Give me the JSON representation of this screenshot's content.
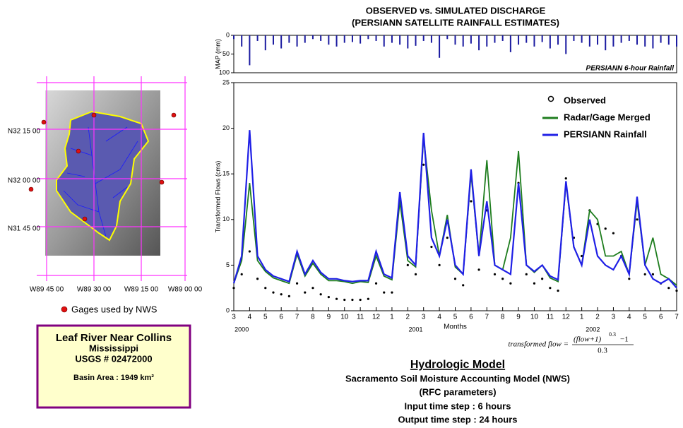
{
  "chart_data": [
    {
      "type": "bar",
      "title": "OBSERVED vs. SIMULATED DISCHARGE",
      "subtitle": "(PERSIANN SATELLITE RAINFALL ESTIMATES)",
      "ylabel": "MAP (mm)",
      "annotation": "PERSIANN 6-hour Rainfall",
      "color": "#1a1aa0",
      "x": [
        0,
        0.5,
        1,
        1.5,
        2,
        2.5,
        3,
        3.5,
        4,
        4.5,
        5,
        5.5,
        6,
        6.5,
        7,
        7.5,
        8,
        8.5,
        9,
        9.5,
        10,
        10.5,
        11,
        11.5,
        12,
        12.5,
        13,
        13.5,
        14,
        14.5,
        15,
        15.5,
        16,
        16.5,
        17,
        17.5,
        18,
        18.5,
        19,
        19.5,
        20,
        20.5,
        21,
        21.5,
        22,
        22.5,
        23,
        23.5,
        24,
        24.5,
        25,
        25.5,
        26,
        26.5,
        27,
        27.5,
        28
      ],
      "values": [
        10,
        30,
        80,
        15,
        40,
        25,
        35,
        20,
        30,
        20,
        10,
        15,
        25,
        30,
        20,
        18,
        22,
        10,
        15,
        30,
        20,
        25,
        35,
        28,
        15,
        20,
        60,
        10,
        25,
        30,
        22,
        40,
        30,
        20,
        15,
        45,
        25,
        20,
        30,
        18,
        35,
        25,
        50,
        15,
        20,
        30,
        25,
        40,
        30,
        20,
        15,
        25,
        30,
        35,
        20,
        25,
        30
      ],
      "xlim": [
        0,
        28
      ],
      "ylim": [
        100,
        0
      ],
      "yticks": [
        0,
        50,
        100
      ]
    },
    {
      "type": "line",
      "ylabel": "Transformed Flows (cms)",
      "xlabel": "Months",
      "legend": "upper right",
      "x": [
        0,
        0.5,
        1,
        1.5,
        2,
        2.5,
        3,
        3.5,
        4,
        4.5,
        5,
        5.5,
        6,
        6.5,
        7,
        7.5,
        8,
        8.5,
        9,
        9.5,
        10,
        10.5,
        11,
        11.5,
        12,
        12.5,
        13,
        13.5,
        14,
        14.5,
        15,
        15.5,
        16,
        16.5,
        17,
        17.5,
        18,
        18.5,
        19,
        19.5,
        20,
        20.5,
        21,
        21.5,
        22,
        22.5,
        23,
        23.5,
        24,
        24.5,
        25,
        25.5,
        26,
        26.5,
        27,
        27.5,
        28
      ],
      "series": [
        {
          "name": "Observed",
          "color": "#000000",
          "style": "markers",
          "values": [
            2.5,
            4,
            6.5,
            3.5,
            2.5,
            2,
            1.8,
            1.6,
            3,
            2,
            2.5,
            1.8,
            1.5,
            1.3,
            1.2,
            1.2,
            1.2,
            1.3,
            3,
            2,
            2,
            12,
            5,
            4,
            16,
            7,
            5,
            8,
            3.5,
            2.8,
            12,
            4.5,
            11,
            4,
            3.5,
            3,
            14,
            4,
            3,
            3.5,
            2.5,
            2.2,
            14.5,
            8,
            6,
            11,
            9.5,
            9,
            8.5,
            6,
            3.5,
            10,
            4,
            4,
            3,
            2.5,
            2.2
          ]
        },
        {
          "name": "Radar/Gage Merged",
          "color": "#1e7d1e",
          "style": "line",
          "values": [
            3,
            5.5,
            14,
            5.5,
            4.3,
            3.6,
            3.3,
            3,
            6.2,
            3.8,
            5.2,
            4,
            3.3,
            3.3,
            3.2,
            3,
            3.2,
            3.1,
            6,
            3.8,
            3.4,
            12,
            5.5,
            4.8,
            19,
            11,
            6,
            10.5,
            4.8,
            4,
            15,
            6,
            16.5,
            5,
            4.5,
            8,
            17.5,
            5,
            4.2,
            5,
            3.6,
            3.2,
            14,
            7,
            5,
            11,
            10,
            6,
            6,
            6.5,
            4,
            12,
            5,
            8,
            4,
            3.5,
            2.8
          ]
        },
        {
          "name": "PERSIANN Rainfall",
          "color": "#1f1fe6",
          "style": "line",
          "values": [
            3,
            6,
            19.8,
            6,
            4.5,
            3.8,
            3.5,
            3.2,
            6.5,
            4,
            5.5,
            4.2,
            3.5,
            3.5,
            3.3,
            3.2,
            3.3,
            3.3,
            6.5,
            4,
            3.6,
            13,
            6,
            5,
            19.5,
            8,
            6,
            10,
            5,
            4,
            15.5,
            6,
            12,
            5,
            4.5,
            4,
            14,
            5,
            4.3,
            5,
            3.8,
            3.4,
            14.2,
            7,
            5,
            10,
            6,
            5,
            4.5,
            6,
            4,
            12.5,
            5,
            3.5,
            3,
            3.5,
            2.5
          ]
        }
      ],
      "xlim": [
        0,
        28
      ],
      "ylim": [
        0,
        25
      ],
      "yticks": [
        0,
        5,
        10,
        15,
        20,
        25
      ],
      "xticks": [
        {
          "value": 0,
          "label": "3"
        },
        {
          "value": 1,
          "label": "4"
        },
        {
          "value": 2,
          "label": "5"
        },
        {
          "value": 3,
          "label": "6"
        },
        {
          "value": 4,
          "label": "7"
        },
        {
          "value": 5,
          "label": "8"
        },
        {
          "value": 6,
          "label": "9"
        },
        {
          "value": 7,
          "label": "10"
        },
        {
          "value": 8,
          "label": "11"
        },
        {
          "value": 9,
          "label": "12"
        },
        {
          "value": 10,
          "label": "1"
        },
        {
          "value": 11,
          "label": "2"
        },
        {
          "value": 12,
          "label": "3"
        },
        {
          "value": 13,
          "label": "4"
        },
        {
          "value": 14,
          "label": "5"
        },
        {
          "value": 15,
          "label": "6"
        },
        {
          "value": 16,
          "label": "7"
        },
        {
          "value": 17,
          "label": "8"
        },
        {
          "value": 18,
          "label": "9"
        },
        {
          "value": 19,
          "label": "10"
        },
        {
          "value": 20,
          "label": "11"
        },
        {
          "value": 21,
          "label": "12"
        },
        {
          "value": 22,
          "label": "1"
        },
        {
          "value": 23,
          "label": "2"
        },
        {
          "value": 24,
          "label": "3"
        },
        {
          "value": 25,
          "label": "4"
        },
        {
          "value": 26,
          "label": "5"
        },
        {
          "value": 27,
          "label": "6"
        },
        {
          "value": 28,
          "label": "7"
        }
      ],
      "year_ticks": [
        {
          "value": 0.5,
          "label": "2000"
        },
        {
          "value": 11.5,
          "label": "2001"
        },
        {
          "value": 22.7,
          "label": "2002"
        }
      ],
      "formula": {
        "lhs": "transformed  flow =",
        "numerator": "(flow+1)",
        "exponent": "0.3",
        "tail": "−1",
        "denominator": "0.3"
      }
    }
  ],
  "map": {
    "latitudes": [
      "N32 15 00",
      "N32 00 00",
      "N31 45 00"
    ],
    "longitudes": [
      "W89 45 00",
      "W89 30 00",
      "W89 15 00",
      "W89 00 00"
    ],
    "legend": "Gages used by NWS"
  },
  "info_box": {
    "name": "Leaf River Near Collins",
    "state": "Mississippi",
    "gauge": "USGS # 02472000",
    "area": "Basin Area : 1949 km²"
  },
  "model": {
    "heading": "Hydrologic Model",
    "lines": [
      "Sacramento Soil Moisture Accounting Model (NWS)",
      "(RFC parameters)",
      "Input time step : 6 hours",
      "Output time step : 24 hours"
    ]
  }
}
